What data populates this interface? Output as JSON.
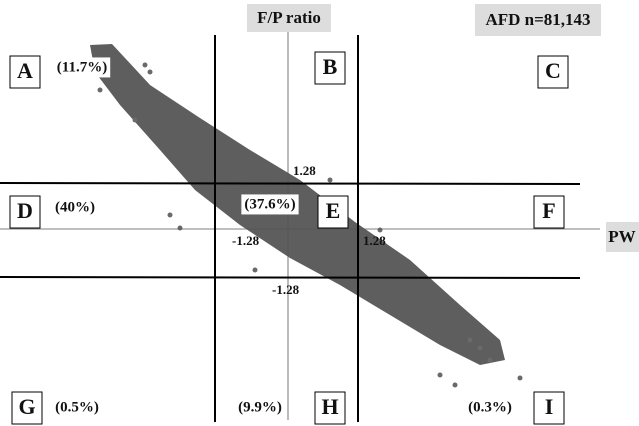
{
  "title": "AFD n=81,143",
  "axes": {
    "y_label": "F/P ratio",
    "x_label": "PW"
  },
  "thresholds": {
    "upper": "1.28",
    "left": "-1.28",
    "right": "1.28",
    "lower": "-1.28"
  },
  "cells": [
    {
      "letter": "A",
      "percent": "(11.7%)"
    },
    {
      "letter": "B",
      "percent": null
    },
    {
      "letter": "C",
      "percent": null
    },
    {
      "letter": "D",
      "percent": "(40%)"
    },
    {
      "letter": "E",
      "percent": "(37.6%)"
    },
    {
      "letter": "F",
      "percent": null
    },
    {
      "letter": "G",
      "percent": "(0.5%)"
    },
    {
      "letter": "H",
      "percent": "(9.9%)"
    },
    {
      "letter": "I",
      "percent": "(0.3%)"
    }
  ]
}
